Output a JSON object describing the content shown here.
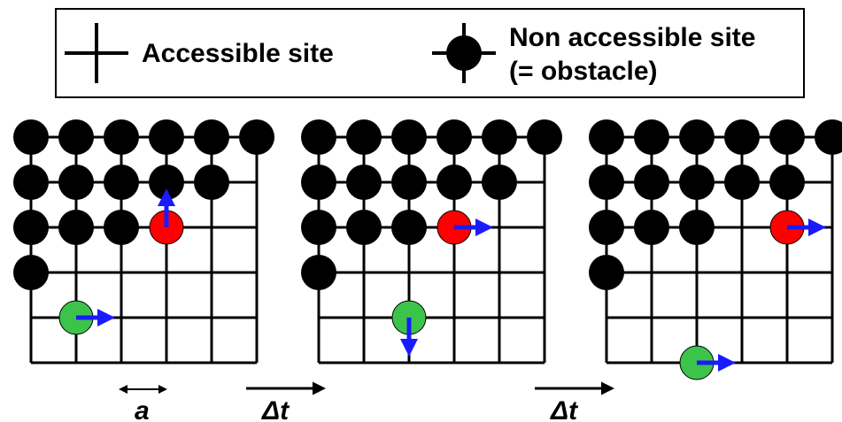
{
  "legend": {
    "accessible_label": "Accessible site",
    "obstacle_label_line1": "Non accessible site",
    "obstacle_label_line2": "(= obstacle)"
  },
  "labels": {
    "lattice_spacing": "a",
    "time_step_1": "Δt",
    "time_step_2": "Δt"
  },
  "colors": {
    "grid": "#000000",
    "obstacle": "#000000",
    "particle_red": "#ff0000",
    "particle_green": "#3cc44a",
    "arrow": "#1a1aff"
  },
  "lattices": [
    {
      "name": "lattice-state-1",
      "obstacles": [
        [
          0,
          0
        ],
        [
          1,
          0
        ],
        [
          2,
          0
        ],
        [
          3,
          0
        ],
        [
          4,
          0
        ],
        [
          5,
          0
        ],
        [
          0,
          1
        ],
        [
          1,
          1
        ],
        [
          2,
          1
        ],
        [
          3,
          1
        ],
        [
          4,
          1
        ],
        [
          0,
          2
        ],
        [
          1,
          2
        ],
        [
          2,
          2
        ],
        [
          0,
          3
        ]
      ],
      "particles": [
        {
          "color": "red",
          "col": 3,
          "row": 2,
          "arrow": "up"
        },
        {
          "color": "green",
          "col": 1,
          "row": 4,
          "arrow": "right"
        }
      ]
    },
    {
      "name": "lattice-state-2",
      "obstacles": [
        [
          0,
          0
        ],
        [
          1,
          0
        ],
        [
          2,
          0
        ],
        [
          3,
          0
        ],
        [
          4,
          0
        ],
        [
          5,
          0
        ],
        [
          0,
          1
        ],
        [
          1,
          1
        ],
        [
          2,
          1
        ],
        [
          3,
          1
        ],
        [
          4,
          1
        ],
        [
          0,
          2
        ],
        [
          1,
          2
        ],
        [
          2,
          2
        ],
        [
          0,
          3
        ]
      ],
      "particles": [
        {
          "color": "red",
          "col": 3,
          "row": 2,
          "arrow": "right"
        },
        {
          "color": "green",
          "col": 2,
          "row": 4,
          "arrow": "down"
        }
      ]
    },
    {
      "name": "lattice-state-3",
      "obstacles": [
        [
          0,
          0
        ],
        [
          1,
          0
        ],
        [
          2,
          0
        ],
        [
          3,
          0
        ],
        [
          4,
          0
        ],
        [
          5,
          0
        ],
        [
          0,
          1
        ],
        [
          1,
          1
        ],
        [
          2,
          1
        ],
        [
          3,
          1
        ],
        [
          4,
          1
        ],
        [
          0,
          2
        ],
        [
          1,
          2
        ],
        [
          2,
          2
        ],
        [
          0,
          3
        ]
      ],
      "particles": [
        {
          "color": "red",
          "col": 4,
          "row": 2,
          "arrow": "right"
        },
        {
          "color": "green",
          "col": 2,
          "row": 5,
          "arrow": "right"
        }
      ]
    }
  ]
}
